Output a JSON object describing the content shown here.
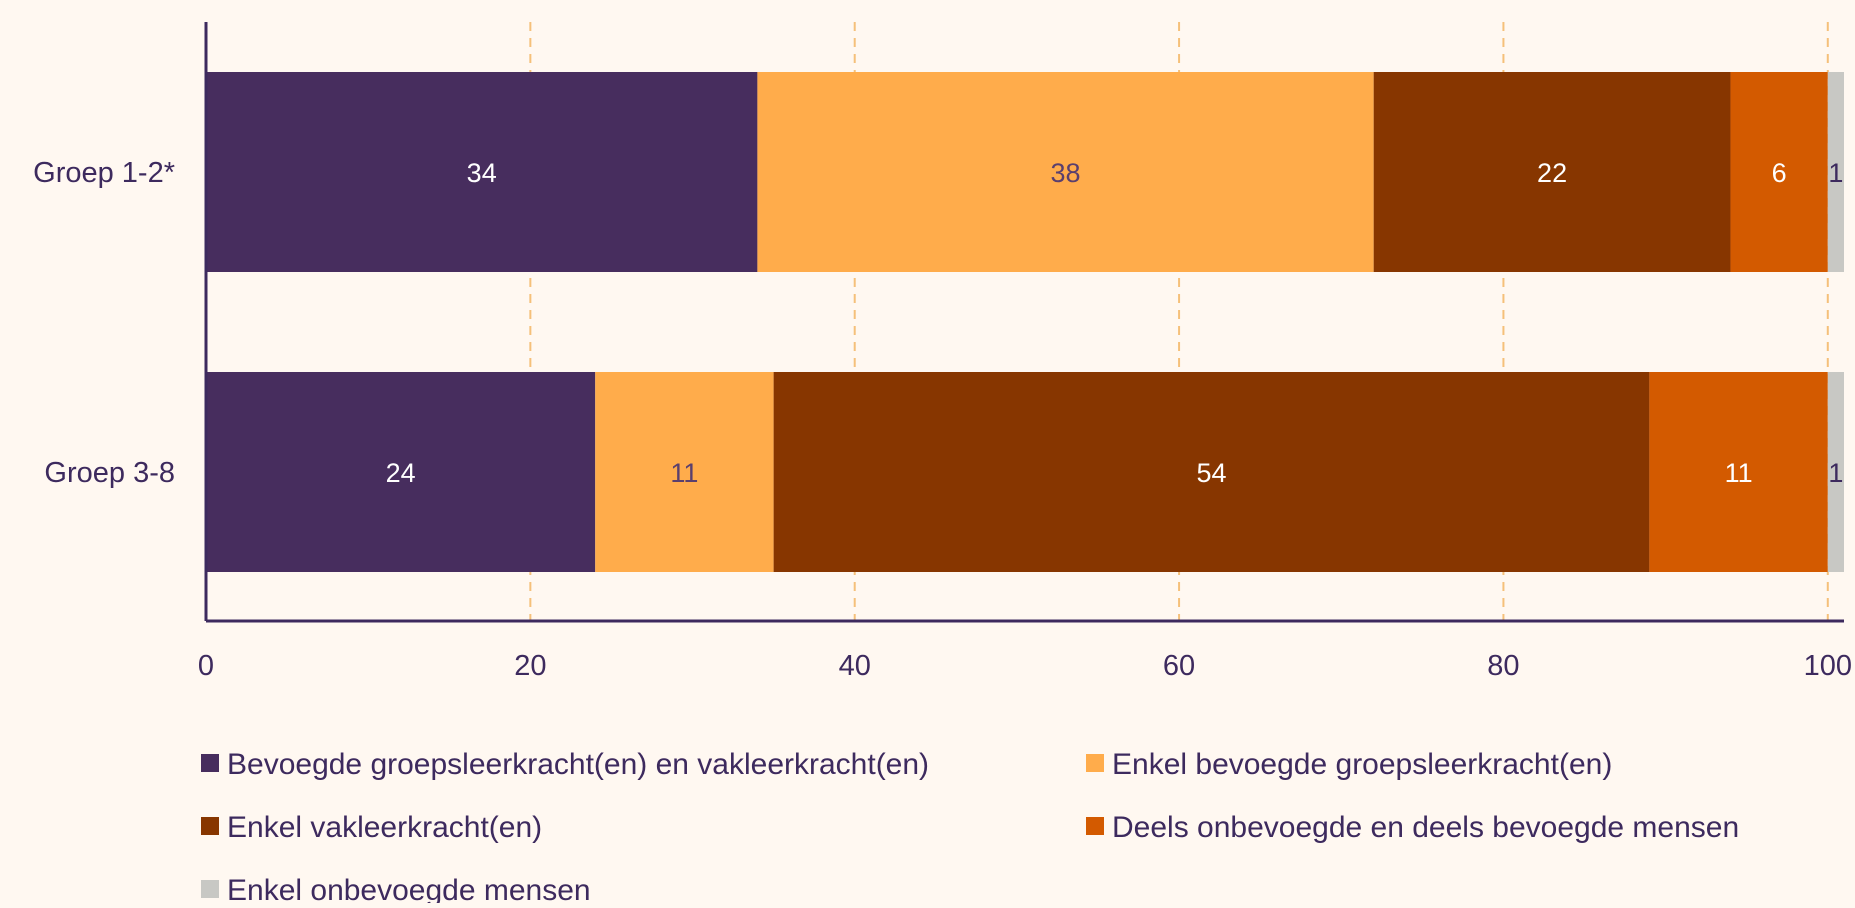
{
  "colors": {
    "background": "#fff8f1",
    "axis": "#3d2a5e",
    "grid": "#f5c07a",
    "text": "#3d2a5e"
  },
  "chart_data": {
    "type": "bar",
    "orientation": "horizontal",
    "stacked": true,
    "categories": [
      "Groep 1-2*",
      "Groep 3-8"
    ],
    "series": [
      {
        "name": "Bevoegde groepsleerkracht(en) en vakleerkracht(en)",
        "color": "#472d5e",
        "label_color": "#ffffff",
        "values": [
          34,
          24
        ]
      },
      {
        "name": "Enkel bevoegde groepsleerkracht(en)",
        "color": "#ffac4b",
        "label_color": "#5a3f6e",
        "values": [
          38,
          11
        ]
      },
      {
        "name": "Enkel vakleerkracht(en)",
        "color": "#873600",
        "label_color": "#ffffff",
        "values": [
          22,
          54
        ]
      },
      {
        "name": "Deels onbevoegde en deels bevoegde mensen",
        "color": "#d35a00",
        "label_color": "#ffffff",
        "values": [
          6,
          11
        ]
      },
      {
        "name": "Enkel onbevoegde mensen",
        "color": "#c8c8c4",
        "label_color": "#3d2a5e",
        "values": [
          1,
          1
        ]
      }
    ],
    "xlim": [
      0,
      101
    ],
    "xticks": [
      0,
      20,
      40,
      60,
      80,
      100
    ],
    "grid": "vertical dashed",
    "legend_position": "bottom",
    "title": "",
    "xlabel": "",
    "ylabel": ""
  }
}
